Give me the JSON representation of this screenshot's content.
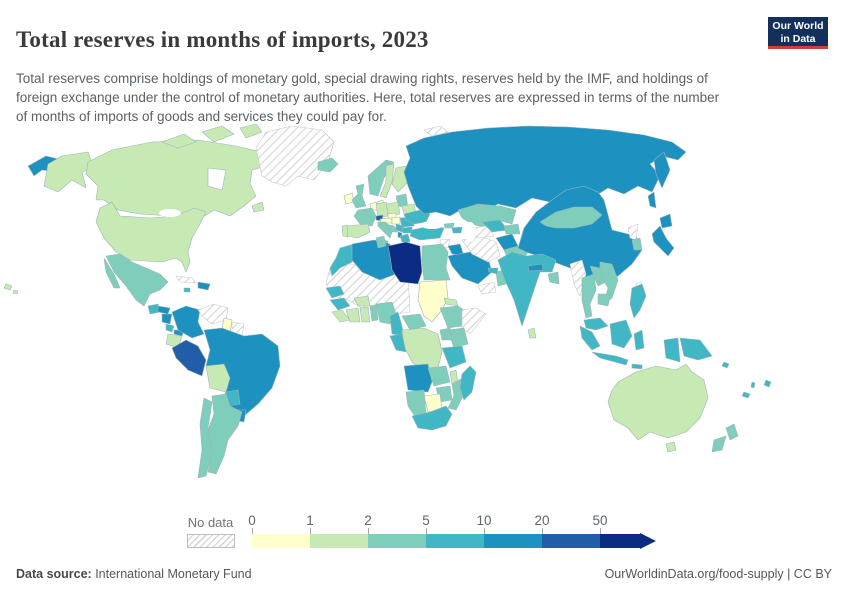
{
  "header": {
    "title": "Total reserves in months of imports, 2023",
    "subtitle": "Total reserves comprise holdings of monetary gold, special drawing rights, reserves held by the IMF, and holdings of foreign exchange under the control of monetary authorities. Here, total reserves are expressed in terms of the number of months of imports of goods and services they could pay for.",
    "logo": {
      "line1": "Our World",
      "line2": "in Data",
      "bg_color": "#12305a",
      "accent_color": "#cf3e36"
    }
  },
  "legend": {
    "no_data_label": "No data",
    "ticks": [
      "0",
      "1",
      "2",
      "5",
      "10",
      "20",
      "50"
    ],
    "bins": [
      {
        "label": "0-1",
        "color": "#ffffcc"
      },
      {
        "label": "1-2",
        "color": "#c7e9b4"
      },
      {
        "label": "2-5",
        "color": "#7fcdbb"
      },
      {
        "label": "5-10",
        "color": "#41b6c4"
      },
      {
        "label": "10-20",
        "color": "#1d91c0"
      },
      {
        "label": "20-50",
        "color": "#225ea8"
      },
      {
        "label": "50+",
        "color": "#0c2c84"
      }
    ]
  },
  "footer": {
    "source_label": "Data source:",
    "source_value": " International Monetary Fund",
    "credit": "OurWorldinData.org/food-supply | CC BY"
  },
  "chart_data": {
    "type": "heatmap",
    "subtype": "choropleth-world-map",
    "title": "Total reserves in months of imports, 2023",
    "unit": "months of imports",
    "bin_edges": [
      0,
      1,
      2,
      5,
      10,
      20,
      50
    ],
    "open_ended_upper": true,
    "bin_labels": [
      "0-1",
      "1-2",
      "2-5",
      "5-10",
      "10-20",
      "20-50",
      "50+"
    ],
    "no_data_label": "No data",
    "countries": [
      {
        "id": "usa",
        "name": "United States",
        "bin": 1
      },
      {
        "id": "canada",
        "name": "Canada",
        "bin": 1
      },
      {
        "id": "greenland",
        "name": "Greenland",
        "bin": "nodata"
      },
      {
        "id": "iceland",
        "name": "Iceland",
        "bin": 2
      },
      {
        "id": "mexico",
        "name": "Mexico",
        "bin": 2
      },
      {
        "id": "guatemala",
        "name": "Guatemala",
        "bin": 3
      },
      {
        "id": "honduras",
        "name": "Honduras",
        "bin": 4
      },
      {
        "id": "nicaragua",
        "name": "Nicaragua",
        "bin": 4
      },
      {
        "id": "costarica",
        "name": "Costa Rica",
        "bin": 3
      },
      {
        "id": "panama",
        "name": "Panama",
        "bin": 4
      },
      {
        "id": "cuba",
        "name": "Cuba",
        "bin": "nodata"
      },
      {
        "id": "hispaniola",
        "name": "Dominican Republic",
        "bin": 4
      },
      {
        "id": "jamaica",
        "name": "Jamaica",
        "bin": 3
      },
      {
        "id": "colombia",
        "name": "Colombia",
        "bin": 4
      },
      {
        "id": "venezuela",
        "name": "Venezuela",
        "bin": "nodata"
      },
      {
        "id": "guyana",
        "name": "Guyana",
        "bin": 0
      },
      {
        "id": "suriname",
        "name": "Suriname",
        "bin": "nodata"
      },
      {
        "id": "ecuador",
        "name": "Ecuador",
        "bin": 1
      },
      {
        "id": "peru",
        "name": "Peru",
        "bin": 5
      },
      {
        "id": "brazil",
        "name": "Brazil",
        "bin": 4
      },
      {
        "id": "bolivia",
        "name": "Bolivia",
        "bin": 1
      },
      {
        "id": "paraguay",
        "name": "Paraguay",
        "bin": 3
      },
      {
        "id": "uruguay",
        "name": "Uruguay",
        "bin": 4
      },
      {
        "id": "argentina",
        "name": "Argentina",
        "bin": 2
      },
      {
        "id": "chile",
        "name": "Chile",
        "bin": 2
      },
      {
        "id": "ireland",
        "name": "Ireland",
        "bin": 0
      },
      {
        "id": "uk",
        "name": "United Kingdom",
        "bin": 2
      },
      {
        "id": "norway",
        "name": "Norway",
        "bin": 2
      },
      {
        "id": "sweden",
        "name": "Sweden",
        "bin": 1
      },
      {
        "id": "finland",
        "name": "Finland",
        "bin": 1
      },
      {
        "id": "denmark",
        "name": "Denmark",
        "bin": 0
      },
      {
        "id": "baltics",
        "name": "Baltic states",
        "bin": 2
      },
      {
        "id": "belarus",
        "name": "Belarus",
        "bin": 1
      },
      {
        "id": "poland",
        "name": "Poland",
        "bin": 1
      },
      {
        "id": "germany",
        "name": "Germany",
        "bin": 1
      },
      {
        "id": "benelux",
        "name": "Netherlands/Belgium",
        "bin": 0
      },
      {
        "id": "france",
        "name": "France",
        "bin": 2
      },
      {
        "id": "spain",
        "name": "Spain",
        "bin": 1
      },
      {
        "id": "portugal",
        "name": "Portugal",
        "bin": 1
      },
      {
        "id": "switzerland",
        "name": "Switzerland",
        "bin": 5
      },
      {
        "id": "czechia",
        "name": "Czechia",
        "bin": 0
      },
      {
        "id": "austria",
        "name": "Austria",
        "bin": 0
      },
      {
        "id": "hungary",
        "name": "Hungary",
        "bin": 0
      },
      {
        "id": "italy",
        "name": "Italy",
        "bin": 2
      },
      {
        "id": "croatia",
        "name": "Croatia",
        "bin": 2
      },
      {
        "id": "serbia",
        "name": "Serbia",
        "bin": 3
      },
      {
        "id": "albania",
        "name": "Albania",
        "bin": 4
      },
      {
        "id": "greece",
        "name": "Greece",
        "bin": 3
      },
      {
        "id": "bulgaria",
        "name": "Bulgaria",
        "bin": 3
      },
      {
        "id": "romania",
        "name": "Romania",
        "bin": 3
      },
      {
        "id": "ukraine",
        "name": "Ukraine",
        "bin": 3
      },
      {
        "id": "russia",
        "name": "Russia",
        "bin": 4
      },
      {
        "id": "svalbard",
        "name": "Svalbard",
        "bin": "nodata"
      },
      {
        "id": "turkey",
        "name": "Turkey",
        "bin": 3
      },
      {
        "id": "georgia",
        "name": "Georgia",
        "bin": 2
      },
      {
        "id": "azerbaijan",
        "name": "Azerbaijan",
        "bin": 3
      },
      {
        "id": "syria",
        "name": "Syria",
        "bin": "nodata"
      },
      {
        "id": "iraq",
        "name": "Iraq",
        "bin": 4
      },
      {
        "id": "israel",
        "name": "Israel",
        "bin": 3
      },
      {
        "id": "saudiarabia",
        "name": "Saudi Arabia",
        "bin": 4
      },
      {
        "id": "yemen",
        "name": "Yemen",
        "bin": "nodata"
      },
      {
        "id": "oman",
        "name": "Oman",
        "bin": 2
      },
      {
        "id": "uae",
        "name": "United Arab Emirates",
        "bin": 3
      },
      {
        "id": "iran",
        "name": "Iran",
        "bin": "nodata"
      },
      {
        "id": "turkmenistan",
        "name": "Turkmenistan",
        "bin": "nodata"
      },
      {
        "id": "uzbekistan",
        "name": "Uzbekistan",
        "bin": 3
      },
      {
        "id": "kazakhstan",
        "name": "Kazakhstan",
        "bin": 2
      },
      {
        "id": "kyrgyzstan",
        "name": "Kyrgyzstan/Tajikistan",
        "bin": 2
      },
      {
        "id": "afghanistan",
        "name": "Afghanistan",
        "bin": 4
      },
      {
        "id": "pakistan",
        "name": "Pakistan",
        "bin": 2
      },
      {
        "id": "india",
        "name": "India",
        "bin": 3
      },
      {
        "id": "nepal",
        "name": "Nepal",
        "bin": 4
      },
      {
        "id": "bangladesh",
        "name": "Bangladesh",
        "bin": 2
      },
      {
        "id": "srilanka",
        "name": "Sri Lanka",
        "bin": 1
      },
      {
        "id": "china",
        "name": "China",
        "bin": 4
      },
      {
        "id": "mongolia",
        "name": "Mongolia",
        "bin": 2
      },
      {
        "id": "northkorea",
        "name": "North Korea",
        "bin": "nodata"
      },
      {
        "id": "southkorea",
        "name": "South Korea",
        "bin": 2
      },
      {
        "id": "japan",
        "name": "Japan",
        "bin": 4
      },
      {
        "id": "taiwan",
        "name": "Taiwan",
        "bin": "nodata"
      },
      {
        "id": "myanmar",
        "name": "Myanmar",
        "bin": "nodata"
      },
      {
        "id": "thailand",
        "name": "Thailand",
        "bin": 2
      },
      {
        "id": "laos",
        "name": "Laos",
        "bin": 2
      },
      {
        "id": "vietnam",
        "name": "Vietnam",
        "bin": 2
      },
      {
        "id": "cambodia",
        "name": "Cambodia",
        "bin": 2
      },
      {
        "id": "malaysia",
        "name": "Malaysia",
        "bin": 3
      },
      {
        "id": "philippines",
        "name": "Philippines",
        "bin": 3
      },
      {
        "id": "indonesia",
        "name": "Indonesia",
        "bin": 3
      },
      {
        "id": "papuanewguinea",
        "name": "Papua New Guinea",
        "bin": 3
      },
      {
        "id": "australia",
        "name": "Australia",
        "bin": 1
      },
      {
        "id": "newzealand",
        "name": "New Zealand",
        "bin": 2
      },
      {
        "id": "fiji",
        "name": "Fiji",
        "bin": 3
      },
      {
        "id": "solomon",
        "name": "Solomon Islands",
        "bin": 3
      },
      {
        "id": "vanuatu",
        "name": "Vanuatu",
        "bin": 3
      },
      {
        "id": "newcaledonia",
        "name": "New Caledonia",
        "bin": 3
      },
      {
        "id": "morocco",
        "name": "Morocco",
        "bin": 3
      },
      {
        "id": "algeria",
        "name": "Algeria",
        "bin": 4
      },
      {
        "id": "tunisia",
        "name": "Tunisia",
        "bin": 2
      },
      {
        "id": "libya",
        "name": "Libya",
        "bin": 6
      },
      {
        "id": "egypt",
        "name": "Egypt",
        "bin": 2
      },
      {
        "id": "sudan",
        "name": "Sudan",
        "bin": 0
      },
      {
        "id": "saharabelt",
        "name": "Mauritania/Mali/Niger/Chad",
        "bin": "nodata"
      },
      {
        "id": "senegal",
        "name": "Senegal",
        "bin": 3
      },
      {
        "id": "guinea",
        "name": "Guinea",
        "bin": 3
      },
      {
        "id": "sierraleone",
        "name": "Sierra Leone/Liberia",
        "bin": 1
      },
      {
        "id": "ivorycoast",
        "name": "Cote d'Ivoire",
        "bin": 1
      },
      {
        "id": "burkinafaso",
        "name": "Burkina Faso",
        "bin": 1
      },
      {
        "id": "ghana",
        "name": "Ghana",
        "bin": 1
      },
      {
        "id": "benin",
        "name": "Benin/Togo",
        "bin": 2
      },
      {
        "id": "nigeria",
        "name": "Nigeria",
        "bin": 2
      },
      {
        "id": "cameroon",
        "name": "Cameroon",
        "bin": 3
      },
      {
        "id": "car",
        "name": "Central African Republic",
        "bin": 2
      },
      {
        "id": "eritrea",
        "name": "Eritrea",
        "bin": 1
      },
      {
        "id": "ethiopia",
        "name": "Ethiopia",
        "bin": 2
      },
      {
        "id": "somalia",
        "name": "Somalia",
        "bin": "nodata"
      },
      {
        "id": "kenya",
        "name": "Kenya",
        "bin": 2
      },
      {
        "id": "uganda",
        "name": "Uganda",
        "bin": 2
      },
      {
        "id": "drc",
        "name": "Democratic Republic of Congo",
        "bin": 1
      },
      {
        "id": "gabon",
        "name": "Gabon/Congo",
        "bin": 3
      },
      {
        "id": "tanzania",
        "name": "Tanzania",
        "bin": 3
      },
      {
        "id": "angola",
        "name": "Angola",
        "bin": 4
      },
      {
        "id": "zambia",
        "name": "Zambia",
        "bin": 2
      },
      {
        "id": "malawi",
        "name": "Malawi",
        "bin": 1
      },
      {
        "id": "mozambique",
        "name": "Mozambique",
        "bin": 2
      },
      {
        "id": "zimbabwe",
        "name": "Zimbabwe",
        "bin": 2
      },
      {
        "id": "botswana",
        "name": "Botswana",
        "bin": 0
      },
      {
        "id": "namibia",
        "name": "Namibia",
        "bin": 2
      },
      {
        "id": "southafrica",
        "name": "South Africa",
        "bin": 3
      },
      {
        "id": "madagascar",
        "name": "Madagascar",
        "bin": 3
      }
    ]
  }
}
